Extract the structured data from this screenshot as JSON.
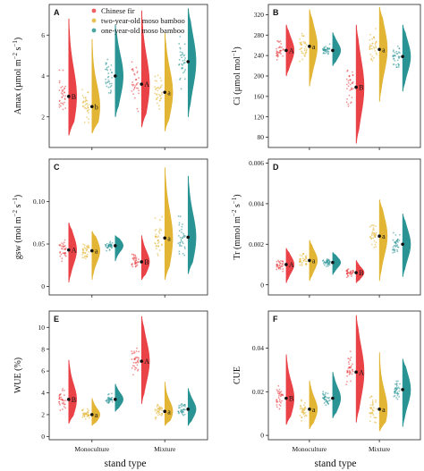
{
  "colors": {
    "fir": "#e8383d",
    "two": "#e2b12a",
    "one": "#1f8e8f"
  },
  "chart_data": [
    {
      "panel": "A",
      "type": "violin-scatter",
      "ylabel": "Amax (µmol m⁻² s⁻¹)",
      "ylim": [
        0.5,
        7.5
      ],
      "yticks": [
        2,
        4,
        6
      ],
      "show_xcat": false,
      "categories": [
        "Monoculture",
        "Mixture"
      ],
      "legend": [
        "Chinese fir",
        "two-year-old moso bamboo",
        "one-year-old moso bamboo"
      ],
      "series": [
        {
          "name": "Chinese fir",
          "means": [
            3.0,
            3.6
          ],
          "lo": [
            1.1,
            1.5
          ],
          "hi": [
            6.8,
            7.2
          ],
          "letters": [
            "B",
            "A"
          ]
        },
        {
          "name": "two-year-old moso bamboo",
          "means": [
            2.5,
            3.2
          ],
          "lo": [
            1.2,
            1.3
          ],
          "hi": [
            5.8,
            6.1
          ],
          "letters": [
            "b",
            "a"
          ]
        },
        {
          "name": "one-year-old moso bamboo",
          "means": [
            4.0,
            4.7
          ],
          "lo": [
            2.0,
            2.0
          ],
          "hi": [
            6.5,
            7.3
          ],
          "letters": [
            "",
            ""
          ]
        }
      ]
    },
    {
      "panel": "B",
      "type": "violin-scatter",
      "ylabel": "Ci (µmol mol⁻¹)",
      "ylim": [
        60,
        340
      ],
      "yticks": [
        80,
        120,
        160,
        200,
        240,
        280,
        320
      ],
      "show_xcat": false,
      "categories": [
        "Monoculture",
        "Mixture"
      ],
      "series": [
        {
          "name": "Chinese fir",
          "means": [
            250,
            178
          ],
          "lo": [
            200,
            68
          ],
          "hi": [
            300,
            300
          ],
          "letters": [
            "A",
            "B"
          ]
        },
        {
          "name": "two-year-old moso bamboo",
          "means": [
            258,
            252
          ],
          "lo": [
            180,
            150
          ],
          "hi": [
            330,
            335
          ],
          "letters": [
            "a",
            "a"
          ]
        },
        {
          "name": "one-year-old moso bamboo",
          "means": [
            250,
            238
          ],
          "lo": [
            220,
            170
          ],
          "hi": [
            285,
            300
          ],
          "letters": [
            "",
            ""
          ]
        }
      ]
    },
    {
      "panel": "C",
      "type": "violin-scatter",
      "ylabel": "gsw (mol m⁻² s⁻¹)",
      "ylim": [
        -0.01,
        0.15
      ],
      "yticks": [
        0.0,
        0.05,
        0.1
      ],
      "show_xcat": false,
      "categories": [
        "Monoculture",
        "Mixture"
      ],
      "series": [
        {
          "name": "Chinese fir",
          "means": [
            0.043,
            0.029
          ],
          "lo": [
            0.005,
            0.008
          ],
          "hi": [
            0.075,
            0.06
          ],
          "letters": [
            "A",
            "B"
          ]
        },
        {
          "name": "two-year-old moso bamboo",
          "means": [
            0.042,
            0.057
          ],
          "lo": [
            0.008,
            0.008
          ],
          "hi": [
            0.065,
            0.14
          ],
          "letters": [
            "a",
            "a"
          ]
        },
        {
          "name": "one-year-old moso bamboo",
          "means": [
            0.048,
            0.058
          ],
          "lo": [
            0.03,
            0.015
          ],
          "hi": [
            0.06,
            0.13
          ],
          "letters": [
            "",
            ""
          ]
        }
      ]
    },
    {
      "panel": "D",
      "type": "violin-scatter",
      "ylabel": "Tr (mmol m⁻² s⁻¹)",
      "ylim": [
        -0.0005,
        0.0062
      ],
      "yticks": [
        0.0,
        0.002,
        0.004,
        0.006
      ],
      "show_xcat": false,
      "categories": [
        "Monoculture",
        "Mixture"
      ],
      "series": [
        {
          "name": "Chinese fir",
          "means": [
            0.001,
            0.0006
          ],
          "lo": [
            0.0001,
            0.0001
          ],
          "hi": [
            0.0018,
            0.0012
          ],
          "letters": [
            "A",
            "B"
          ]
        },
        {
          "name": "two-year-old moso bamboo",
          "means": [
            0.0012,
            0.0024
          ],
          "lo": [
            0.0002,
            0.0002
          ],
          "hi": [
            0.0022,
            0.0042
          ],
          "letters": [
            "a",
            "a"
          ]
        },
        {
          "name": "one-year-old moso bamboo",
          "means": [
            0.0011,
            0.002
          ],
          "lo": [
            0.0005,
            0.0004
          ],
          "hi": [
            0.0016,
            0.0035
          ],
          "letters": [
            "",
            ""
          ]
        }
      ]
    },
    {
      "panel": "E",
      "type": "violin-scatter",
      "ylabel": "WUE (%)",
      "ylim": [
        -0.3,
        11.5
      ],
      "yticks": [
        0,
        2,
        4,
        6,
        8,
        10
      ],
      "show_xcat": true,
      "categories": [
        "Monoculture",
        "Mixture"
      ],
      "series": [
        {
          "name": "Chinese fir",
          "means": [
            3.4,
            6.9
          ],
          "lo": [
            1.2,
            3.0
          ],
          "hi": [
            7.0,
            11.0
          ],
          "letters": [
            "B",
            "A"
          ]
        },
        {
          "name": "two-year-old moso bamboo",
          "means": [
            2.0,
            2.3
          ],
          "lo": [
            1.0,
            1.0
          ],
          "hi": [
            3.5,
            5.0
          ],
          "letters": [
            "a",
            "a"
          ]
        },
        {
          "name": "one-year-old moso bamboo",
          "means": [
            3.4,
            2.5
          ],
          "lo": [
            2.3,
            1.0
          ],
          "hi": [
            4.8,
            4.4
          ],
          "letters": [
            "",
            ""
          ]
        }
      ]
    },
    {
      "panel": "F",
      "type": "violin-scatter",
      "ylabel": "CUE",
      "ylim": [
        -0.002,
        0.057
      ],
      "yticks": [
        0.0,
        0.02,
        0.04
      ],
      "show_xcat": true,
      "categories": [
        "Monoculture",
        "Mixture"
      ],
      "series": [
        {
          "name": "Chinese fir",
          "means": [
            0.017,
            0.029
          ],
          "lo": [
            0.005,
            0.006
          ],
          "hi": [
            0.037,
            0.055
          ],
          "letters": [
            "B",
            "A"
          ]
        },
        {
          "name": "two-year-old moso bamboo",
          "means": [
            0.012,
            0.012
          ],
          "lo": [
            0.003,
            0.002
          ],
          "hi": [
            0.025,
            0.038
          ],
          "letters": [
            "a",
            "a"
          ]
        },
        {
          "name": "one-year-old moso bamboo",
          "means": [
            0.017,
            0.021
          ],
          "lo": [
            0.008,
            0.004
          ],
          "hi": [
            0.029,
            0.035
          ],
          "letters": [
            "",
            ""
          ]
        }
      ]
    }
  ],
  "xlabels": [
    "stand type",
    "stand type"
  ]
}
